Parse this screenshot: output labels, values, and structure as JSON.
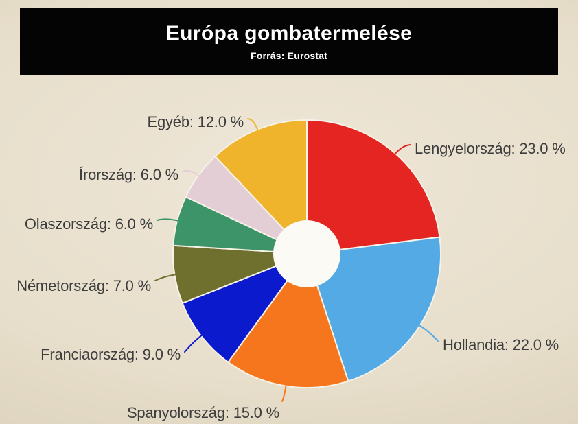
{
  "header": {
    "title": "Európa gombatermelése",
    "subtitle": "Forrás: Eurostat"
  },
  "chart_data": {
    "type": "pie",
    "donut": true,
    "title": "Európa gombatermelése",
    "source": "Forrás: Eurostat",
    "unit": "%",
    "start_angle_deg": -90,
    "direction": "clockwise",
    "label_format": "{label}: {value} %",
    "slices": [
      {
        "label": "Lengyelország",
        "value": 23.0,
        "color": "#e52521"
      },
      {
        "label": "Hollandia",
        "value": 22.0,
        "color": "#54aae4"
      },
      {
        "label": "Spanyolország",
        "value": 15.0,
        "color": "#f5761c"
      },
      {
        "label": "Franciaország",
        "value": 9.0,
        "color": "#0b1acd"
      },
      {
        "label": "Németország",
        "value": 7.0,
        "color": "#70702e"
      },
      {
        "label": "Olaszország",
        "value": 6.0,
        "color": "#3e9469"
      },
      {
        "label": "Írország",
        "value": 6.0,
        "color": "#e3ced6"
      },
      {
        "label": "Egyéb",
        "value": 12.0,
        "color": "#f0b42c"
      }
    ]
  }
}
